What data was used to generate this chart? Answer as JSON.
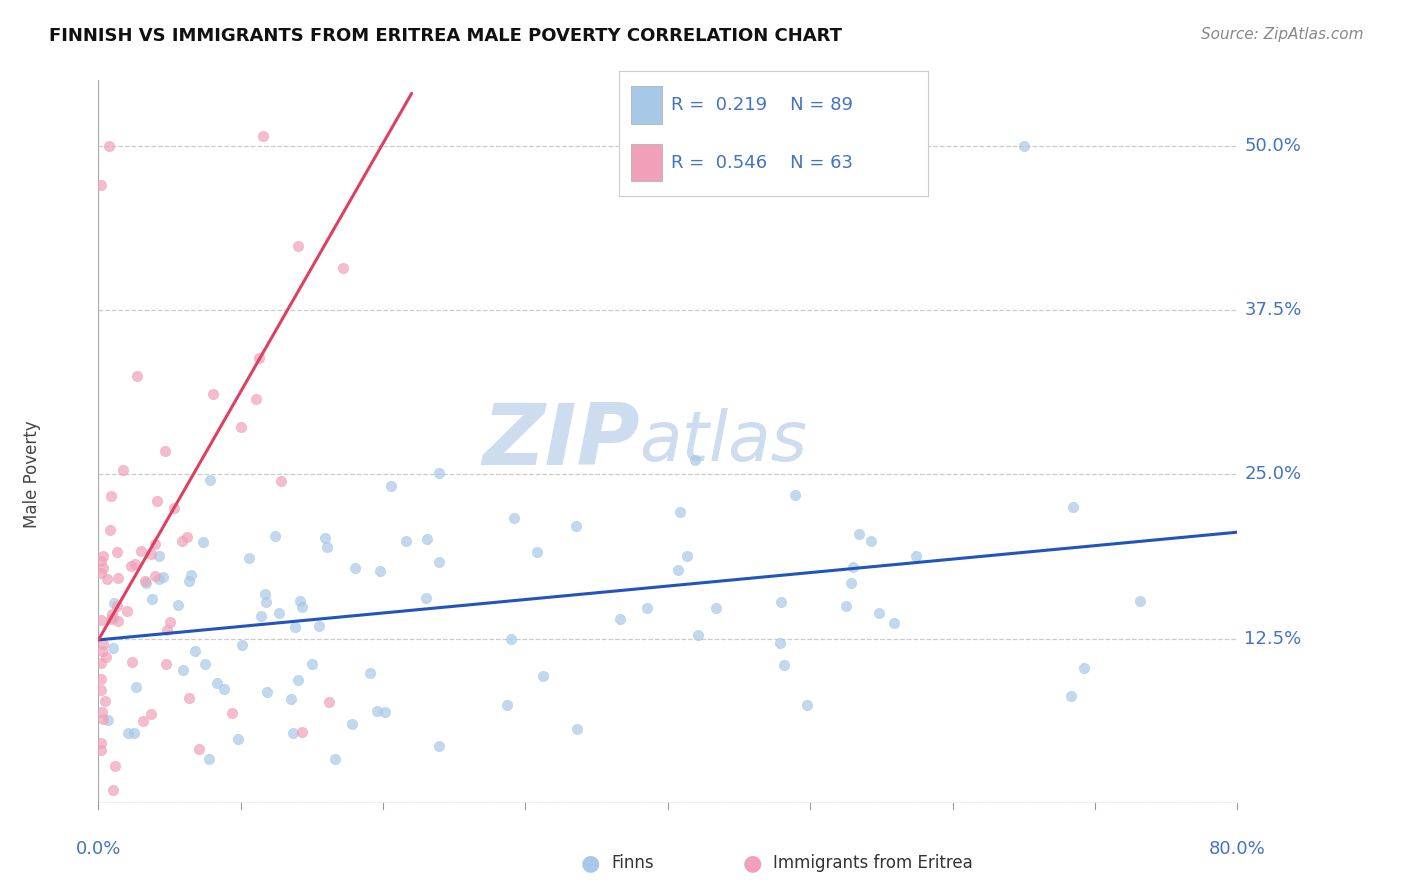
{
  "title": "FINNISH VS IMMIGRANTS FROM ERITREA MALE POVERTY CORRELATION CHART",
  "source": "Source: ZipAtlas.com",
  "ylabel": "Male Poverty",
  "yticks": [
    0.0,
    0.125,
    0.25,
    0.375,
    0.5
  ],
  "ytick_labels": [
    "",
    "12.5%",
    "25.0%",
    "37.5%",
    "50.0%"
  ],
  "xlim": [
    0.0,
    0.8
  ],
  "ylim": [
    0.0,
    0.55
  ],
  "legend_line1": "R =  0.219   N = 89",
  "legend_line2": "R =  0.546   N = 63",
  "legend_label1": "Finns",
  "legend_label2": "Immigrants from Eritrea",
  "color_finns": "#a8c8e8",
  "color_eritrea": "#f0a0b8",
  "color_finns_line": "#2255bb",
  "color_eritrea_line": "#e04060",
  "watermark_zip": "ZIP",
  "watermark_atlas": "atlas",
  "watermark_color": "#cddcee",
  "background_color": "#ffffff",
  "grid_color": "#cccccc",
  "title_color": "#111111",
  "tick_label_color": "#4472c4",
  "finns_trend_x0": 0.0,
  "finns_trend_y0": 0.124,
  "finns_trend_x1": 0.8,
  "finns_trend_y1": 0.206,
  "eritrea_trend_x0": 0.0,
  "eritrea_trend_y0": 0.124,
  "eritrea_trend_x1": 0.22,
  "eritrea_trend_y1": 0.54
}
